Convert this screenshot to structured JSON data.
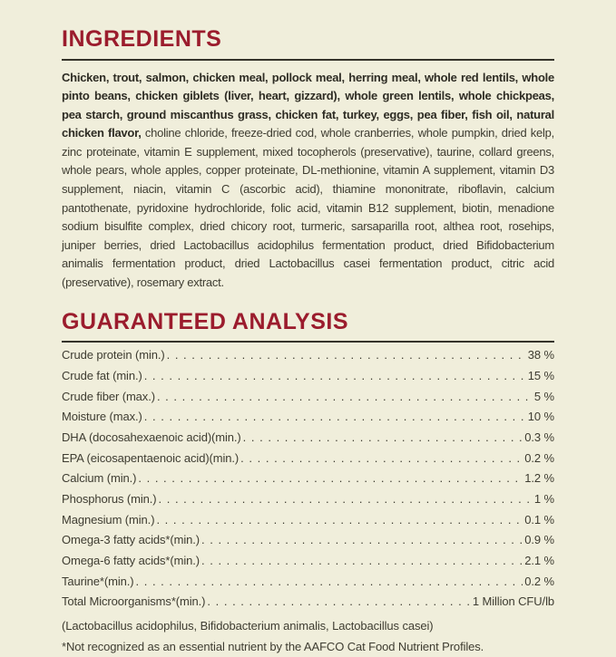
{
  "colors": {
    "background": "#f0eedb",
    "accent_maroon": "#9b1c2d",
    "divider": "#35332a",
    "body_text": "#3e3c31"
  },
  "ingredients": {
    "title": "INGREDIENTS",
    "primary": "Chicken, trout, salmon, chicken meal, pollock meal, herring meal, whole red lentils, whole pinto beans, chicken giblets (liver, heart, gizzard), whole green lentils, whole chickpeas, pea starch, ground miscanthus grass, chicken fat, turkey, eggs, pea fiber, fish oil, natural chicken flavor,",
    "secondary": "choline chloride, freeze-dried cod, whole cranberries, whole pumpkin, dried kelp, zinc proteinate, vitamin E supplement, mixed tocopherols (preservative), taurine, collard greens, whole pears, whole apples, copper proteinate, DL-methionine, vitamin A supplement, vitamin D3 supplement, niacin, vitamin C (ascorbic acid), thiamine mononitrate, riboflavin, calcium pantothenate, pyridoxine hydrochloride, folic acid, vitamin B12 supplement, biotin, menadione sodium bisulfite complex, dried chicory root, turmeric, sarsaparilla root, althea root, rosehips, juniper berries, dried Lactobacillus acidophilus fermentation product, dried Bifidobacterium animalis fermentation product, dried Lactobacillus casei fermentation product, citric acid (preservative), rosemary extract."
  },
  "guaranteed_analysis": {
    "title": "GUARANTEED ANALYSIS",
    "rows": [
      {
        "label": "Crude protein (min.)",
        "value": "38 %"
      },
      {
        "label": "Crude fat (min.)",
        "value": "15 %"
      },
      {
        "label": "Crude fiber (max.)",
        "value": "5 %"
      },
      {
        "label": "Moisture (max.)",
        "value": "10 %"
      },
      {
        "label": "DHA (docosahexaenoic acid)(min.)",
        "value": "0.3 %"
      },
      {
        "label": "EPA (eicosapentaenoic acid)(min.)",
        "value": "0.2 %"
      },
      {
        "label": "Calcium (min.)",
        "value": "1.2 %"
      },
      {
        "label": "Phosphorus (min.)",
        "value": "1 %"
      },
      {
        "label": "Magnesium (min.)",
        "value": "0.1 %"
      },
      {
        "label": "Omega-3 fatty acids*(min.)",
        "value": "0.9 %"
      },
      {
        "label": "Omega-6 fatty acids*(min.)",
        "value": "2.1 %"
      },
      {
        "label": "Taurine*(min.)",
        "value": "0.2 %"
      },
      {
        "label": "Total Microorganisms*(min.)",
        "value": "1 Million CFU/lb"
      }
    ],
    "microorganisms_note": "(Lactobacillus acidophilus, Bifidobacterium animalis, Lactobacillus casei)",
    "aafco_note": "*Not recognized as an essential nutrient by the AAFCO Cat Food Nutrient Profiles."
  }
}
